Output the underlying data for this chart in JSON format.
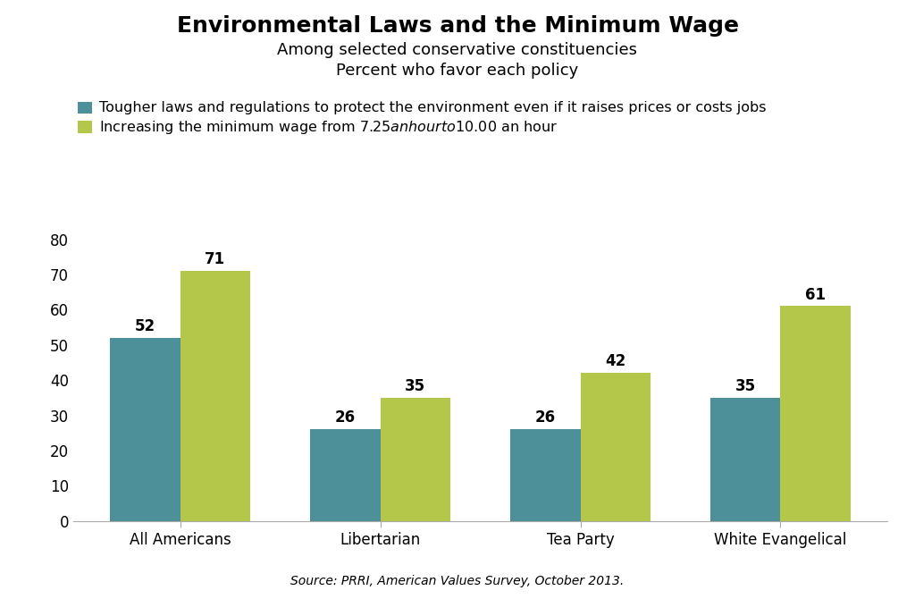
{
  "title": "Environmental Laws and the Minimum Wage",
  "subtitle1": "Among selected conservative constituencies",
  "subtitle2": "Percent who favor each policy",
  "legend1": "Tougher laws and regulations to protect the environment even if it raises prices or costs jobs",
  "legend2": "Increasing the minimum wage from $7.25 an hour to $10.00 an hour",
  "source": "Source: PRRI, American Values Survey, October 2013.",
  "categories": [
    "All Americans",
    "Libertarian",
    "Tea Party",
    "White Evangelical"
  ],
  "series1_values": [
    52,
    26,
    26,
    35
  ],
  "series2_values": [
    71,
    35,
    42,
    61
  ],
  "color1": "#4d9099",
  "color2": "#b5c74a",
  "bar_width": 0.35,
  "ylim": [
    0,
    85
  ],
  "yticks": [
    0,
    10,
    20,
    30,
    40,
    50,
    60,
    70,
    80
  ],
  "title_fontsize": 18,
  "subtitle_fontsize": 13,
  "legend_fontsize": 11.5,
  "label_fontsize": 12,
  "tick_fontsize": 12,
  "source_fontsize": 10
}
